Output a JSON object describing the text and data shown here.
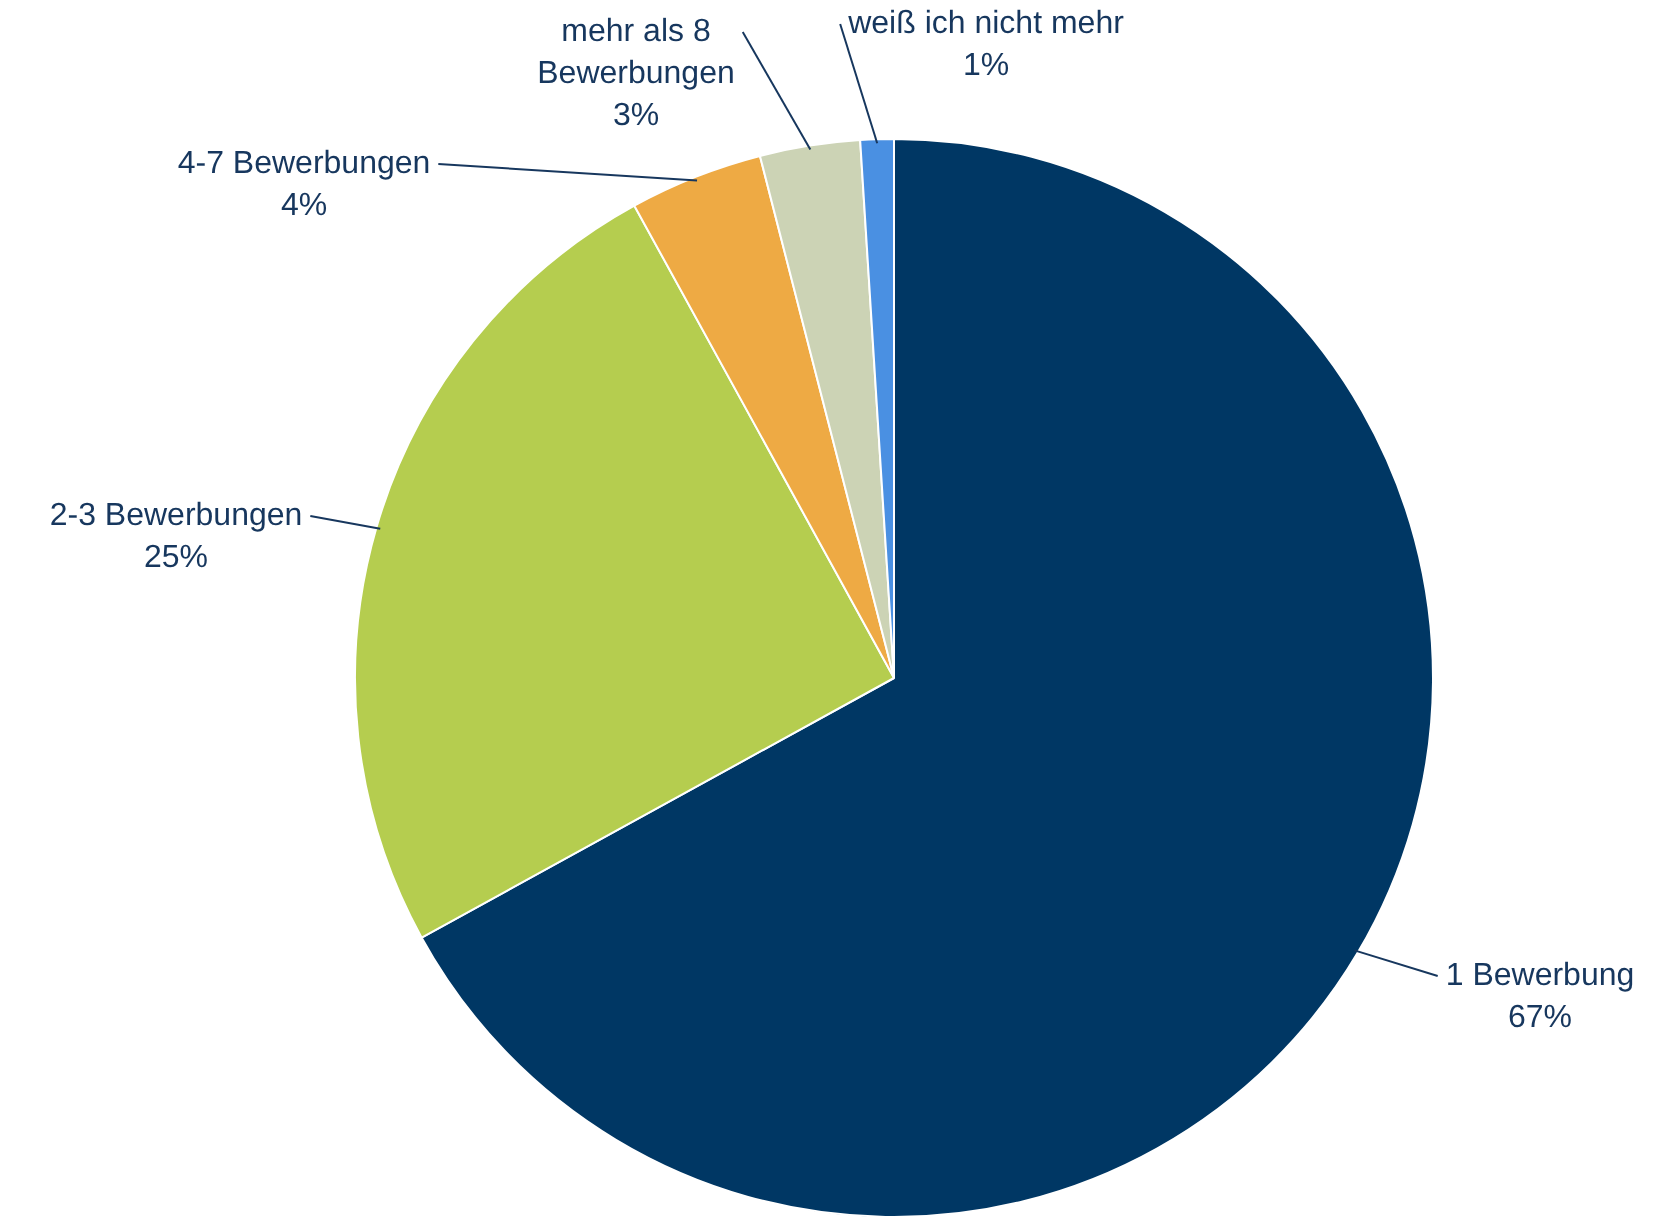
{
  "chart_data": {
    "type": "pie",
    "categories": [
      "1 Bewerbung",
      "2-3 Bewerbungen",
      "4-7 Bewerbungen",
      "mehr als 8 Bewerbungen",
      "weiß ich nicht mehr"
    ],
    "values": [
      67,
      25,
      4,
      3,
      1
    ],
    "colors": [
      "#003764",
      "#b5cd4f",
      "#eeaa44",
      "#ccd3b5",
      "#4a90e2"
    ],
    "value_labels": [
      "67%",
      "25%",
      "4%",
      "3%",
      "1%"
    ],
    "legend": false
  }
}
